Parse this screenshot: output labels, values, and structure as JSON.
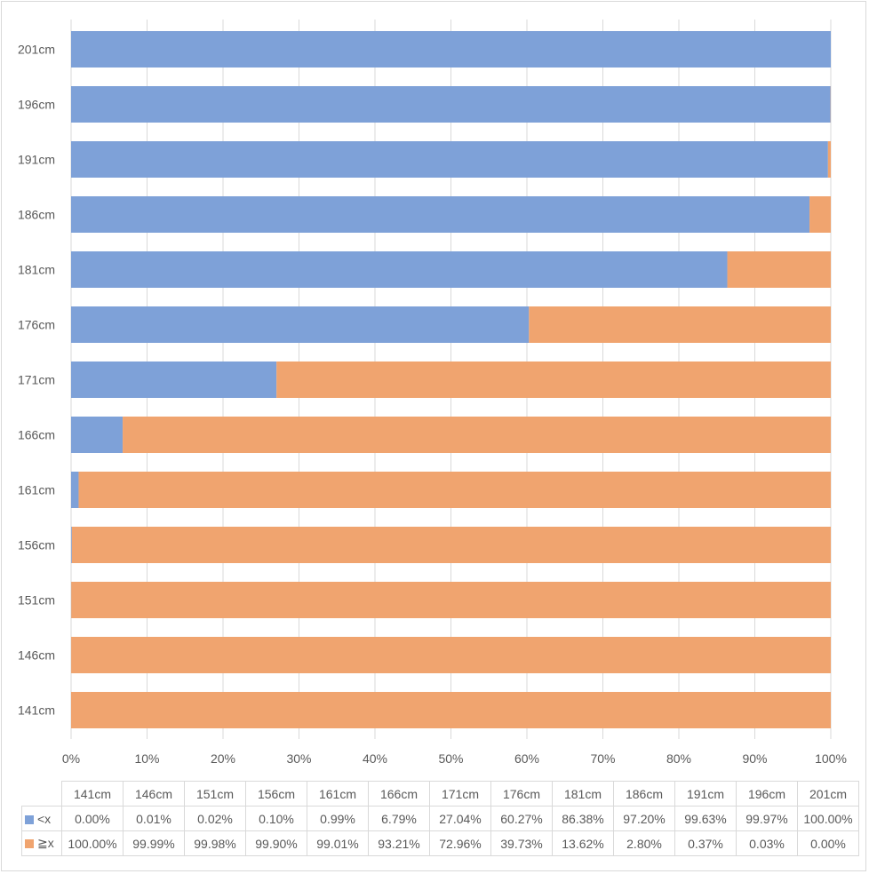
{
  "chart_data": {
    "type": "bar",
    "orientation": "horizontal",
    "stacked": "percent",
    "categories": [
      "141cm",
      "146cm",
      "151cm",
      "156cm",
      "161cm",
      "166cm",
      "171cm",
      "176cm",
      "181cm",
      "186cm",
      "191cm",
      "196cm",
      "201cm"
    ],
    "series": [
      {
        "name": "<x",
        "color": "#7ea1d8",
        "values": [
          0.0,
          0.01,
          0.02,
          0.1,
          0.99,
          6.79,
          27.04,
          60.27,
          86.38,
          97.2,
          99.63,
          99.97,
          100.0
        ],
        "labels": [
          "0.00%",
          "0.01%",
          "0.02%",
          "0.10%",
          "0.99%",
          "6.79%",
          "27.04%",
          "60.27%",
          "86.38%",
          "97.20%",
          "99.63%",
          "99.97%",
          "100.00%"
        ]
      },
      {
        "name": "≧x",
        "color": "#f0a46f",
        "values": [
          100.0,
          99.99,
          99.98,
          99.9,
          99.01,
          93.21,
          72.96,
          39.73,
          13.62,
          2.8,
          0.37,
          0.03,
          0.0
        ],
        "labels": [
          "100.00%",
          "99.99%",
          "99.98%",
          "99.90%",
          "99.01%",
          "93.21%",
          "72.96%",
          "39.73%",
          "13.62%",
          "2.80%",
          "0.37%",
          "0.03%",
          "0.00%"
        ]
      }
    ],
    "xlim": [
      0,
      100
    ],
    "x_ticks": [
      "0%",
      "10%",
      "20%",
      "30%",
      "40%",
      "50%",
      "60%",
      "70%",
      "80%",
      "90%",
      "100%"
    ],
    "grid": true,
    "legend": "data-table-below"
  }
}
